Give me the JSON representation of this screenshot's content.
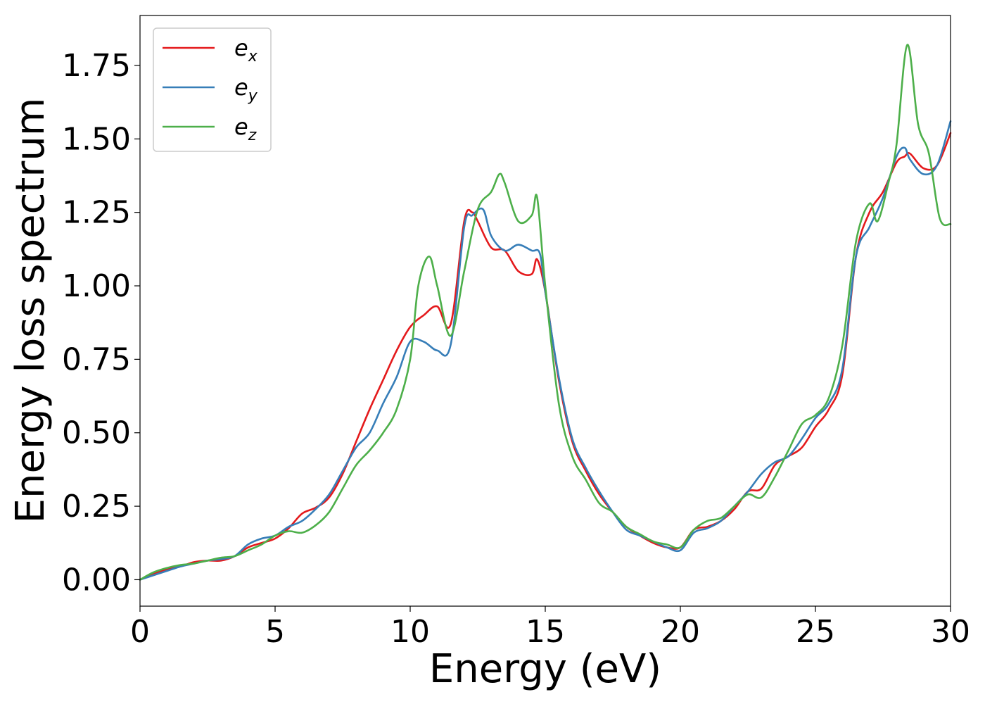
{
  "chart_data": {
    "type": "line",
    "title": "",
    "xlabel": "Energy (eV)",
    "ylabel": "Energy loss spectrum",
    "xlim": [
      0,
      30
    ],
    "ylim": [
      -0.09,
      1.92
    ],
    "xticks": [
      0,
      5,
      10,
      15,
      20,
      25,
      30
    ],
    "xtick_labels": [
      "0",
      "5",
      "10",
      "15",
      "20",
      "25",
      "30"
    ],
    "yticks": [
      0.0,
      0.25,
      0.5,
      0.75,
      1.0,
      1.25,
      1.5,
      1.75
    ],
    "ytick_labels": [
      "0.00",
      "0.25",
      "0.50",
      "0.75",
      "1.00",
      "1.25",
      "1.50",
      "1.75"
    ],
    "grid": false,
    "legend_position": "top-left",
    "series": [
      {
        "name": "e_x",
        "label_main": "e",
        "label_sub": "x",
        "color": "#e41a1c",
        "x": [
          0,
          0.5,
          1,
          1.5,
          2,
          2.5,
          3,
          3.5,
          4,
          4.5,
          5,
          5.5,
          6,
          6.5,
          7,
          7.5,
          8,
          8.5,
          9,
          9.5,
          10,
          10.5,
          11,
          11.5,
          12,
          12.3,
          12.5,
          13,
          13.5,
          14,
          14.5,
          14.7,
          15,
          15.5,
          16,
          16.5,
          17,
          17.5,
          18,
          18.5,
          19,
          19.5,
          20,
          20.5,
          21,
          21.5,
          22,
          22.5,
          23,
          23.5,
          24,
          24.5,
          25,
          25.5,
          26,
          26.5,
          27,
          27.5,
          28,
          28.3,
          28.5,
          29,
          29.5,
          30
        ],
        "y": [
          0.0,
          0.02,
          0.035,
          0.045,
          0.06,
          0.065,
          0.065,
          0.08,
          0.11,
          0.125,
          0.14,
          0.175,
          0.225,
          0.245,
          0.28,
          0.36,
          0.47,
          0.58,
          0.68,
          0.78,
          0.86,
          0.9,
          0.93,
          0.87,
          1.22,
          1.25,
          1.22,
          1.13,
          1.12,
          1.05,
          1.04,
          1.09,
          0.98,
          0.68,
          0.47,
          0.37,
          0.29,
          0.23,
          0.18,
          0.15,
          0.125,
          0.11,
          0.11,
          0.17,
          0.18,
          0.2,
          0.24,
          0.3,
          0.31,
          0.39,
          0.42,
          0.45,
          0.52,
          0.58,
          0.7,
          1.1,
          1.25,
          1.32,
          1.42,
          1.44,
          1.45,
          1.4,
          1.41,
          1.52
        ]
      },
      {
        "name": "e_y",
        "label_main": "e",
        "label_sub": "y",
        "color": "#377eb8",
        "x": [
          0,
          0.5,
          1,
          1.5,
          2,
          2.5,
          3,
          3.5,
          4,
          4.5,
          5,
          5.5,
          6,
          6.5,
          7,
          7.5,
          8,
          8.5,
          9,
          9.5,
          10,
          10.5,
          11,
          11.5,
          12,
          12.3,
          12.7,
          13,
          13.5,
          14,
          14.5,
          14.8,
          15,
          15.5,
          16,
          16.5,
          17,
          17.5,
          18,
          18.5,
          19,
          19.5,
          20,
          20.5,
          21,
          21.5,
          22,
          22.5,
          23,
          23.5,
          24,
          24.5,
          25,
          25.5,
          26,
          26.5,
          27,
          27.5,
          28,
          28.3,
          28.5,
          29,
          29.5,
          30
        ],
        "y": [
          0.0,
          0.015,
          0.03,
          0.045,
          0.055,
          0.065,
          0.07,
          0.08,
          0.12,
          0.14,
          0.15,
          0.18,
          0.2,
          0.24,
          0.29,
          0.37,
          0.45,
          0.5,
          0.6,
          0.69,
          0.81,
          0.81,
          0.78,
          0.8,
          1.2,
          1.24,
          1.26,
          1.17,
          1.12,
          1.14,
          1.12,
          1.11,
          0.98,
          0.69,
          0.48,
          0.38,
          0.3,
          0.23,
          0.17,
          0.15,
          0.13,
          0.11,
          0.1,
          0.16,
          0.175,
          0.2,
          0.25,
          0.3,
          0.36,
          0.4,
          0.42,
          0.48,
          0.55,
          0.6,
          0.72,
          1.1,
          1.2,
          1.3,
          1.44,
          1.47,
          1.43,
          1.38,
          1.41,
          1.56
        ]
      },
      {
        "name": "e_z",
        "label_main": "e",
        "label_sub": "z",
        "color": "#4daf4a",
        "x": [
          0,
          0.5,
          1,
          1.5,
          2,
          2.5,
          3,
          3.5,
          4,
          4.5,
          5,
          5.5,
          6,
          6.5,
          7,
          7.5,
          8,
          8.5,
          9,
          9.5,
          10,
          10.3,
          10.7,
          11,
          11.5,
          12,
          12.5,
          13,
          13.3,
          13.5,
          14,
          14.5,
          14.7,
          15,
          15.5,
          16,
          16.5,
          17,
          17.5,
          18,
          18.5,
          19,
          19.5,
          20,
          20.5,
          21,
          21.5,
          22,
          22.5,
          23,
          23.5,
          24,
          24.5,
          25,
          25.5,
          26,
          26.5,
          27,
          27.3,
          27.7,
          28,
          28.4,
          28.8,
          29.2,
          29.6,
          30
        ],
        "y": [
          0.0,
          0.025,
          0.04,
          0.05,
          0.055,
          0.065,
          0.075,
          0.08,
          0.1,
          0.12,
          0.15,
          0.165,
          0.16,
          0.185,
          0.23,
          0.31,
          0.39,
          0.44,
          0.5,
          0.58,
          0.75,
          1.0,
          1.1,
          1.0,
          0.83,
          1.05,
          1.26,
          1.32,
          1.38,
          1.35,
          1.22,
          1.24,
          1.3,
          1.0,
          0.6,
          0.42,
          0.34,
          0.26,
          0.23,
          0.18,
          0.155,
          0.13,
          0.12,
          0.11,
          0.17,
          0.2,
          0.21,
          0.25,
          0.29,
          0.28,
          0.35,
          0.44,
          0.53,
          0.56,
          0.62,
          0.8,
          1.15,
          1.28,
          1.22,
          1.35,
          1.48,
          1.82,
          1.55,
          1.45,
          1.23,
          1.21
        ]
      }
    ]
  }
}
